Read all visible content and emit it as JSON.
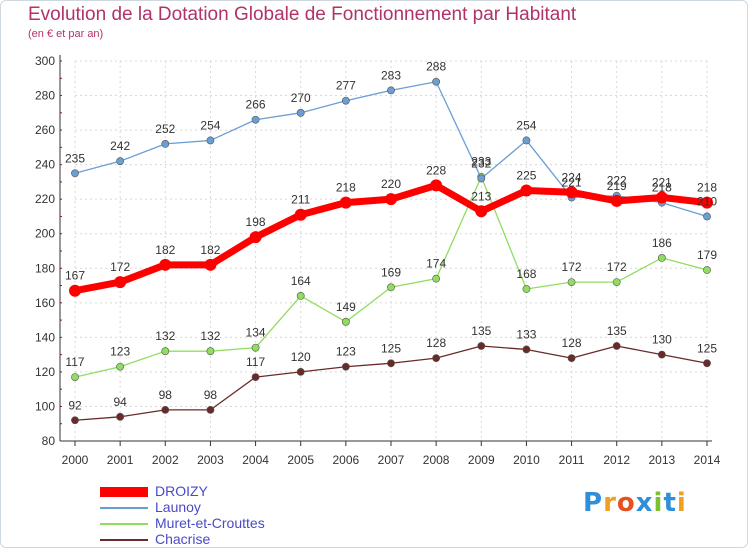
{
  "title": "Evolution de la Dotation Globale de Fonctionnement par Habitant",
  "subtitle": "(en € et par an)",
  "logo": {
    "text": "Proxiti",
    "colors": [
      "#2f8fd8",
      "#f0a020",
      "#e85020",
      "#2f8fd8",
      "#7cc030",
      "#2f8fd8",
      "#f0a020"
    ]
  },
  "chart_data": {
    "type": "line",
    "x": [
      "2000",
      "2001",
      "2002",
      "2003",
      "2004",
      "2005",
      "2006",
      "2007",
      "2008",
      "2009",
      "2010",
      "2011",
      "2012",
      "2013",
      "2014"
    ],
    "ylim": [
      80,
      300
    ],
    "yticks": [
      80,
      100,
      120,
      140,
      160,
      180,
      200,
      220,
      240,
      260,
      280,
      300
    ],
    "grid": true,
    "legend_position": "bottom-left",
    "series": [
      {
        "name": "DROIZY",
        "color": "#ff0000",
        "values": [
          167,
          172,
          182,
          182,
          198,
          211,
          218,
          220,
          228,
          213,
          225,
          224,
          219,
          221,
          218
        ]
      },
      {
        "name": "Launoy",
        "color": "#6a9fd4",
        "values": [
          235,
          242,
          252,
          254,
          266,
          270,
          277,
          283,
          288,
          232,
          254,
          221,
          222,
          218,
          210
        ]
      },
      {
        "name": "Muret-et-Crouttes",
        "color": "#90dd60",
        "values": [
          117,
          123,
          132,
          132,
          134,
          164,
          149,
          169,
          174,
          233,
          168,
          172,
          172,
          186,
          179
        ]
      },
      {
        "name": "Chacrise",
        "color": "#6b2a2a",
        "values": [
          92,
          94,
          98,
          98,
          117,
          120,
          123,
          125,
          128,
          135,
          133,
          128,
          135,
          130,
          125
        ]
      }
    ]
  }
}
